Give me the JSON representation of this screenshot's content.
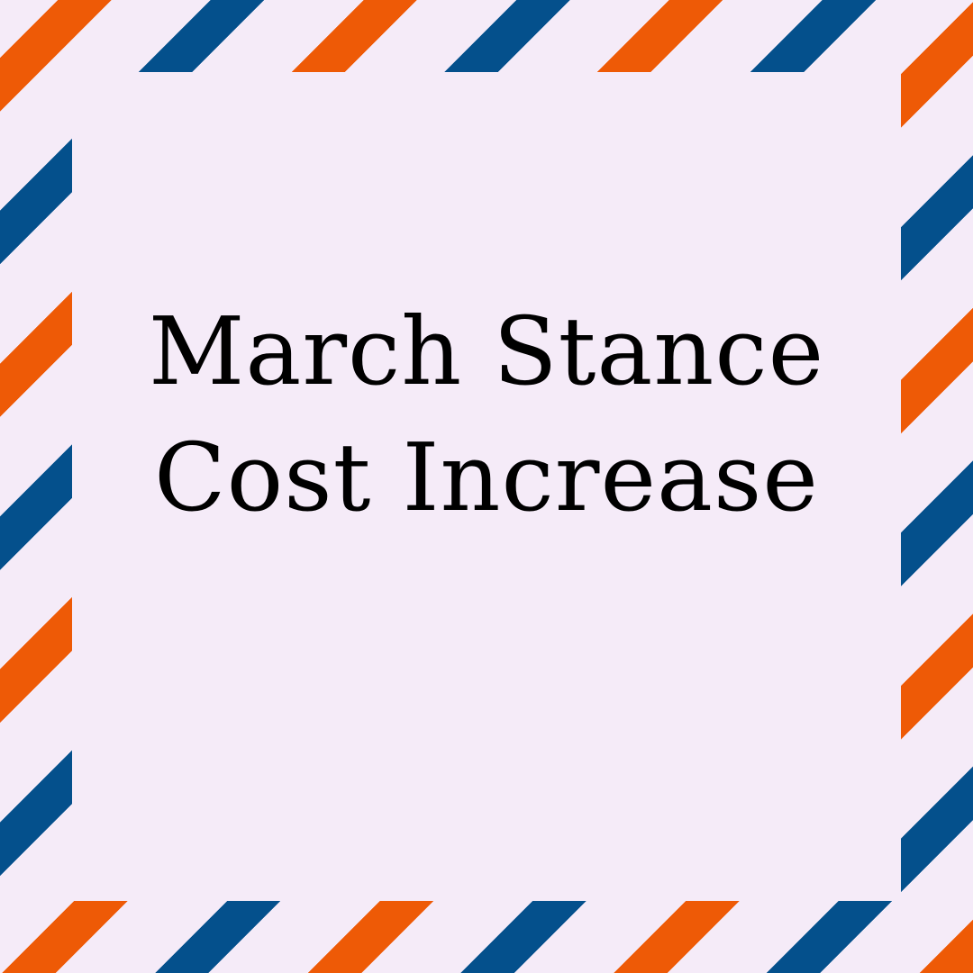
{
  "graphic": {
    "title_lines": [
      "March Stance",
      "Cost Increase"
    ],
    "colors": {
      "background": "#f5ebf8",
      "stripe_orange": "#ee5a06",
      "stripe_blue": "#04508c",
      "text": "#000000"
    },
    "border_style": "airmail diagonal stripes"
  }
}
